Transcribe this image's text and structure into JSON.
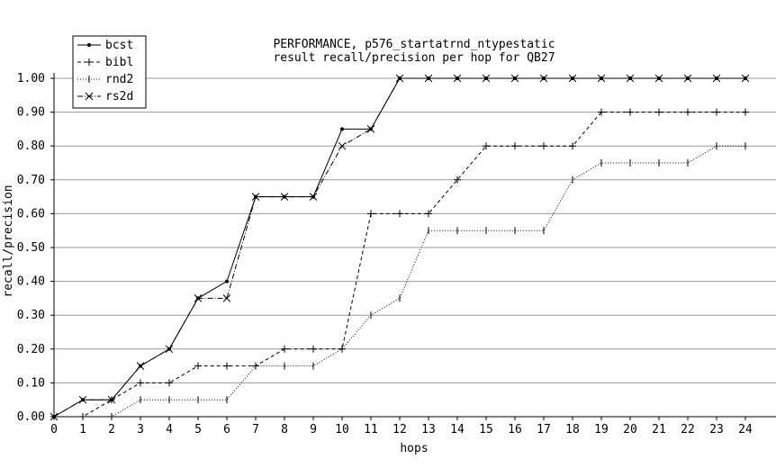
{
  "chart_data": {
    "type": "line",
    "title": "PERFORMANCE, p576_startatrnd_ntypestatic",
    "subtitle": "result recall/precision per hop for QB27",
    "xlabel": "hops",
    "ylabel": "recall/precision",
    "xlim": [
      0,
      24
    ],
    "ylim": [
      0,
      1.0
    ],
    "x_ticks": [
      "0",
      "1",
      "2",
      "3",
      "4",
      "5",
      "6",
      "7",
      "8",
      "9",
      "10",
      "11",
      "12",
      "13",
      "14",
      "15",
      "16",
      "17",
      "18",
      "19",
      "20",
      "21",
      "22",
      "23",
      "24"
    ],
    "y_ticks": [
      "0.00",
      "0.10",
      "0.20",
      "0.30",
      "0.40",
      "0.50",
      "0.60",
      "0.70",
      "0.80",
      "0.90",
      "1.00"
    ],
    "grid": "horizontal",
    "legend": "top-left",
    "series": [
      {
        "name": "bcst",
        "marker": "dot",
        "dash": "solid",
        "points": [
          [
            0,
            0.0
          ],
          [
            1,
            0.05
          ],
          [
            2,
            0.05
          ],
          [
            3,
            0.15
          ],
          [
            4,
            0.2
          ],
          [
            5,
            0.35
          ],
          [
            6,
            0.4
          ],
          [
            7,
            0.65
          ],
          [
            8,
            0.65
          ],
          [
            9,
            0.65
          ],
          [
            10,
            0.85
          ],
          [
            11,
            0.85
          ],
          [
            12,
            1.0
          ],
          [
            13,
            1.0
          ],
          [
            14,
            1.0
          ],
          [
            15,
            1.0
          ],
          [
            16,
            1.0
          ],
          [
            17,
            1.0
          ],
          [
            18,
            1.0
          ],
          [
            19,
            1.0
          ],
          [
            20,
            1.0
          ],
          [
            21,
            1.0
          ],
          [
            22,
            1.0
          ],
          [
            23,
            1.0
          ],
          [
            24,
            1.0
          ]
        ]
      },
      {
        "name": "bibl",
        "marker": "plus",
        "dash": "dashed",
        "points": [
          [
            0,
            0.0
          ],
          [
            1,
            0.0
          ],
          [
            2,
            0.05
          ],
          [
            3,
            0.1
          ],
          [
            4,
            0.1
          ],
          [
            5,
            0.15
          ],
          [
            6,
            0.15
          ],
          [
            7,
            0.15
          ],
          [
            8,
            0.2
          ],
          [
            9,
            0.2
          ],
          [
            10,
            0.2
          ],
          [
            11,
            0.6
          ],
          [
            12,
            0.6
          ],
          [
            13,
            0.6
          ],
          [
            14,
            0.7
          ],
          [
            15,
            0.8
          ],
          [
            16,
            0.8
          ],
          [
            17,
            0.8
          ],
          [
            18,
            0.8
          ],
          [
            19,
            0.9
          ],
          [
            20,
            0.9
          ],
          [
            21,
            0.9
          ],
          [
            22,
            0.9
          ],
          [
            23,
            0.9
          ],
          [
            24,
            0.9
          ]
        ]
      },
      {
        "name": "rnd2",
        "marker": "vtick",
        "dash": "dotted",
        "points": [
          [
            0,
            0.0
          ],
          [
            1,
            0.0
          ],
          [
            2,
            0.0
          ],
          [
            3,
            0.05
          ],
          [
            4,
            0.05
          ],
          [
            5,
            0.05
          ],
          [
            6,
            0.05
          ],
          [
            7,
            0.15
          ],
          [
            8,
            0.15
          ],
          [
            9,
            0.15
          ],
          [
            10,
            0.2
          ],
          [
            11,
            0.3
          ],
          [
            12,
            0.35
          ],
          [
            13,
            0.55
          ],
          [
            14,
            0.55
          ],
          [
            15,
            0.55
          ],
          [
            16,
            0.55
          ],
          [
            17,
            0.55
          ],
          [
            18,
            0.7
          ],
          [
            19,
            0.75
          ],
          [
            20,
            0.75
          ],
          [
            21,
            0.75
          ],
          [
            22,
            0.75
          ],
          [
            23,
            0.8
          ],
          [
            24,
            0.8
          ]
        ]
      },
      {
        "name": "rs2d",
        "marker": "x",
        "dash": "dashdot",
        "points": [
          [
            0,
            0.0
          ],
          [
            1,
            0.05
          ],
          [
            2,
            0.05
          ],
          [
            3,
            0.15
          ],
          [
            4,
            0.2
          ],
          [
            5,
            0.35
          ],
          [
            6,
            0.35
          ],
          [
            7,
            0.65
          ],
          [
            8,
            0.65
          ],
          [
            9,
            0.65
          ],
          [
            10,
            0.8
          ],
          [
            11,
            0.85
          ],
          [
            12,
            1.0
          ],
          [
            13,
            1.0
          ],
          [
            14,
            1.0
          ],
          [
            15,
            1.0
          ],
          [
            16,
            1.0
          ],
          [
            17,
            1.0
          ],
          [
            18,
            1.0
          ],
          [
            19,
            1.0
          ],
          [
            20,
            1.0
          ],
          [
            21,
            1.0
          ],
          [
            22,
            1.0
          ],
          [
            23,
            1.0
          ],
          [
            24,
            1.0
          ]
        ]
      }
    ]
  }
}
